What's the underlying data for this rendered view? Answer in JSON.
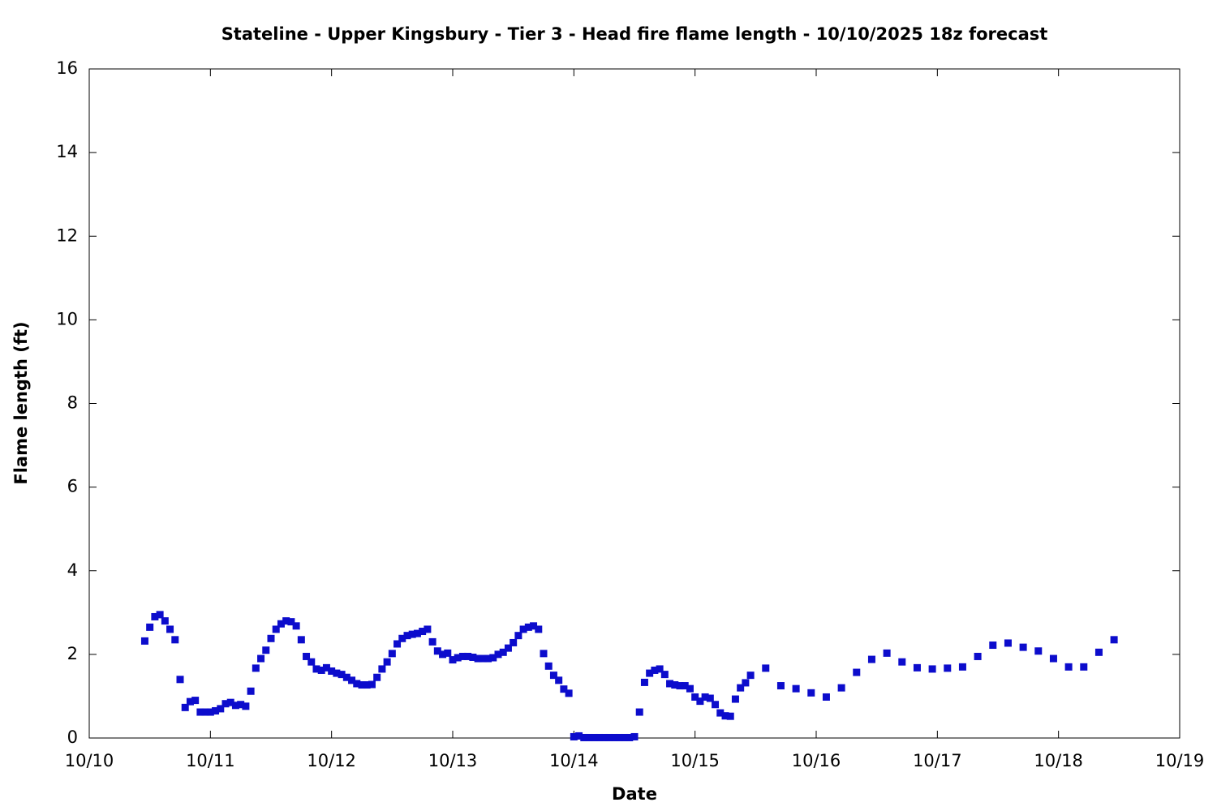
{
  "chart_data": {
    "type": "scatter",
    "title": "Stateline - Upper Kingsbury - Tier 3 - Head fire flame length - 10/10/2025 18z forecast",
    "x_label": "Date",
    "y_label": "Flame length (ft)",
    "xlim": [
      0,
      216
    ],
    "xticks": [
      {
        "value": 0,
        "label": "10/10"
      },
      {
        "value": 24,
        "label": "10/11"
      },
      {
        "value": 48,
        "label": "10/12"
      },
      {
        "value": 72,
        "label": "10/13"
      },
      {
        "value": 96,
        "label": "10/14"
      },
      {
        "value": 120,
        "label": "10/15"
      },
      {
        "value": 144,
        "label": "10/16"
      },
      {
        "value": 168,
        "label": "10/17"
      },
      {
        "value": 192,
        "label": "10/18"
      },
      {
        "value": 216,
        "label": "10/19"
      }
    ],
    "ylim": [
      0,
      16
    ],
    "yticks": [
      0,
      2,
      4,
      6,
      8,
      10,
      12,
      14,
      16
    ],
    "series": [
      {
        "color": "#0c0ccc",
        "x": [
          11,
          12,
          13,
          14,
          15,
          16,
          17,
          18,
          19,
          20,
          21,
          22,
          23,
          24,
          25,
          26,
          27,
          28,
          29,
          30,
          31,
          32,
          33,
          34,
          35,
          36,
          37,
          38,
          39,
          40,
          41,
          42,
          43,
          44,
          45,
          46,
          47,
          48,
          49,
          50,
          51,
          52,
          53,
          54,
          55,
          56,
          57,
          58,
          59,
          60,
          61,
          62,
          63,
          64,
          65,
          66,
          67,
          68,
          69,
          70,
          71,
          72,
          73,
          74,
          75,
          76,
          77,
          78,
          79,
          80,
          81,
          82,
          83,
          84,
          85,
          86,
          87,
          88,
          89,
          90,
          91,
          92,
          93,
          94,
          95,
          96,
          97,
          98,
          99,
          100,
          101,
          102,
          103,
          104,
          105,
          106,
          107,
          108,
          109,
          110,
          111,
          112,
          113,
          114,
          115,
          116,
          117,
          118,
          119,
          120,
          121,
          122,
          123,
          124,
          125,
          126,
          127,
          128,
          129,
          130,
          131,
          134,
          137,
          140,
          143,
          146,
          149,
          152,
          155,
          158,
          161,
          164,
          167,
          170,
          173,
          176,
          179,
          182,
          185,
          188,
          191,
          194,
          197,
          200,
          203
        ],
        "values": [
          2.32,
          2.65,
          2.9,
          2.95,
          2.8,
          2.6,
          2.35,
          1.4,
          0.73,
          0.87,
          0.9,
          0.62,
          0.62,
          0.62,
          0.65,
          0.7,
          0.82,
          0.85,
          0.78,
          0.8,
          0.76,
          1.12,
          1.67,
          1.9,
          2.1,
          2.38,
          2.6,
          2.73,
          2.8,
          2.78,
          2.68,
          2.35,
          1.95,
          1.82,
          1.65,
          1.62,
          1.68,
          1.6,
          1.55,
          1.52,
          1.45,
          1.38,
          1.3,
          1.27,
          1.27,
          1.28,
          1.45,
          1.65,
          1.82,
          2.02,
          2.25,
          2.38,
          2.45,
          2.48,
          2.5,
          2.55,
          2.6,
          2.3,
          2.08,
          2.0,
          2.03,
          1.87,
          1.92,
          1.95,
          1.95,
          1.93,
          1.9,
          1.9,
          1.9,
          1.92,
          2.0,
          2.05,
          2.15,
          2.28,
          2.45,
          2.6,
          2.65,
          2.68,
          2.6,
          2.02,
          1.72,
          1.5,
          1.38,
          1.17,
          1.07,
          0.03,
          0.05,
          0.01,
          0.01,
          0.01,
          0.01,
          0.01,
          0.01,
          0.01,
          0.01,
          0.01,
          0.01,
          0.03,
          0.62,
          1.33,
          1.55,
          1.62,
          1.65,
          1.52,
          1.3,
          1.27,
          1.25,
          1.25,
          1.18,
          0.98,
          0.88,
          0.98,
          0.95,
          0.8,
          0.6,
          0.53,
          0.52,
          0.93,
          1.2,
          1.32,
          1.5,
          1.67,
          1.25,
          1.18,
          1.08,
          0.98,
          1.2,
          1.57,
          1.88,
          2.03,
          1.82,
          1.68,
          1.65,
          1.67,
          1.7,
          1.95,
          2.22,
          2.27,
          2.17,
          2.08,
          1.9,
          1.7,
          1.7,
          2.05,
          2.35
        ]
      }
    ]
  }
}
